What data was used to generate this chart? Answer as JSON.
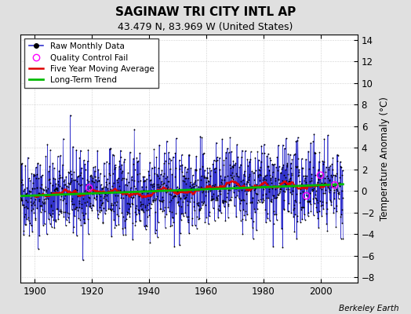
{
  "title": "SAGINAW TRI CITY INTL AP",
  "subtitle": "43.479 N, 83.969 W (United States)",
  "ylabel": "Temperature Anomaly (°C)",
  "credit": "Berkeley Earth",
  "xlim": [
    1895,
    2013
  ],
  "ylim": [
    -8.5,
    14.5
  ],
  "yticks": [
    -8,
    -6,
    -4,
    -2,
    0,
    2,
    4,
    6,
    8,
    10,
    12,
    14
  ],
  "xticks": [
    1900,
    1920,
    1940,
    1960,
    1980,
    2000
  ],
  "bg_color": "#e0e0e0",
  "plot_bg_color": "#ffffff",
  "raw_line_color": "#3333cc",
  "raw_dot_color": "#000000",
  "qc_fail_color": "#ff00ff",
  "moving_avg_color": "#dd0000",
  "trend_color": "#00bb00",
  "seed": 42,
  "n_months": 1356,
  "start_year": 1895.0,
  "qc_indices": [
    288,
    1201,
    1260,
    1320
  ]
}
